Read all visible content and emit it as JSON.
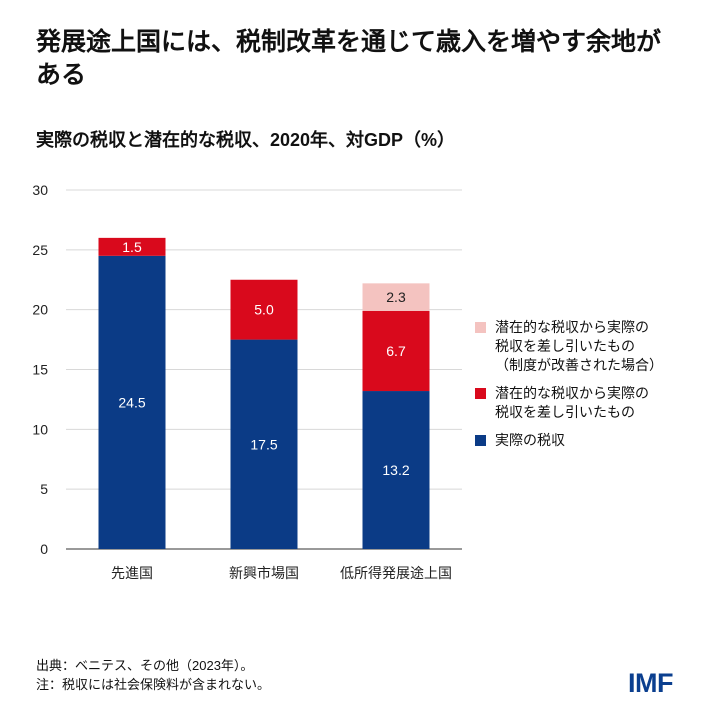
{
  "title": "発展途上国には、税制改革を通じて歳入を増やす余地がある",
  "subtitle": "実際の税収と潜在的な税収、2020年、対GDP（%）",
  "chart_data": {
    "type": "bar",
    "stacked": true,
    "categories": [
      "先進国",
      "新興市場国",
      "低所得発展途上国"
    ],
    "series": [
      {
        "name": "実際の税収",
        "color": "#0b3b86",
        "values": [
          24.5,
          17.5,
          13.2
        ],
        "labels": [
          "24.5",
          "17.5",
          "13.2"
        ]
      },
      {
        "name": "潜在的な税収から実際の\n税収を差し引いたもの",
        "color": "#d9091c",
        "values": [
          1.5,
          5.0,
          6.7
        ],
        "labels": [
          "1.5",
          "5.0",
          "6.7"
        ]
      },
      {
        "name": "潜在的な税収から実際の\n税収を差し引いたもの\n（制度が改善された場合）",
        "color": "#f4c3c0",
        "values": [
          0,
          0,
          2.3
        ],
        "labels": [
          "",
          "",
          "2.3"
        ]
      }
    ],
    "ylim": [
      0,
      30
    ],
    "yticks": [
      "0",
      "5",
      "10",
      "15",
      "20",
      "25",
      "30"
    ],
    "grid": true,
    "legend": "right"
  },
  "footer": {
    "source": "出典：ベニテス、その他（2023年）。",
    "note": "注：税収には社会保険料が含まれない。"
  },
  "logo": "IMF"
}
